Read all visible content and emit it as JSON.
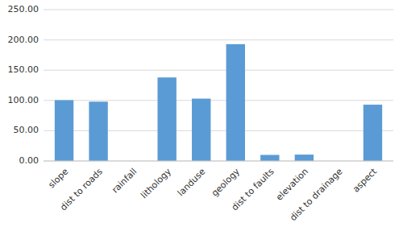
{
  "chart_data": {
    "type": "bar",
    "categories": [
      "slope",
      "dist to roads",
      "rainfall",
      "lithology",
      "landuse",
      "geology",
      "dist to faults",
      "elevation",
      "dist to drainage",
      "aspect"
    ],
    "values": [
      100.5,
      98.0,
      0.0,
      138.0,
      103.0,
      193.0,
      10.0,
      10.5,
      0.0,
      93.0
    ],
    "color": "#5B9BD5",
    "ylim": [
      0,
      250
    ],
    "yticks": [
      {
        "value": 0,
        "label": "0.00"
      },
      {
        "value": 50,
        "label": "50.00"
      },
      {
        "value": 100,
        "label": "100.00"
      },
      {
        "value": 150,
        "label": "150.00"
      },
      {
        "value": 200,
        "label": "200.00"
      },
      {
        "value": 250,
        "label": "250.00"
      }
    ],
    "grid": true
  }
}
